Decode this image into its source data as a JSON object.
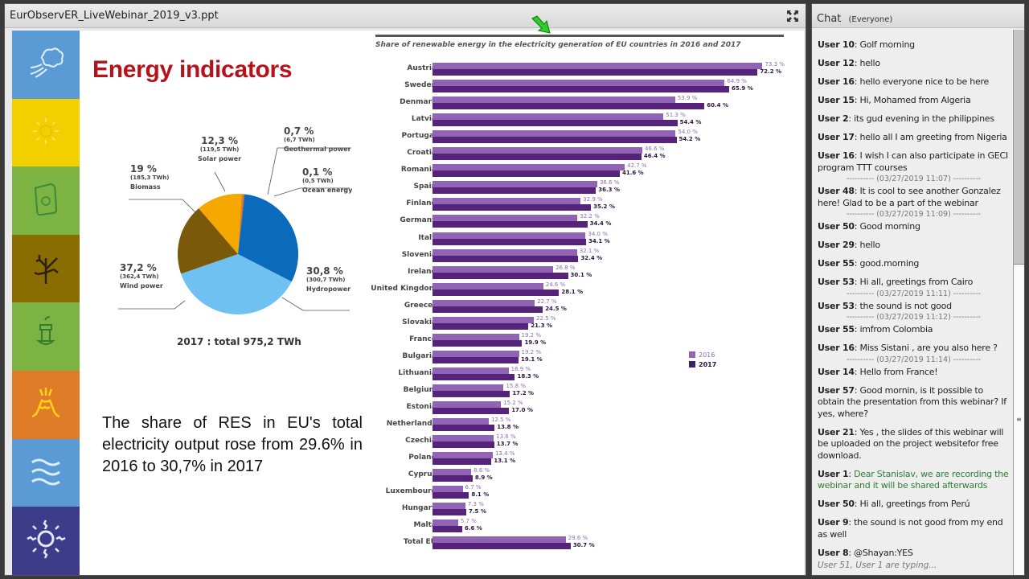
{
  "share_pod": {
    "title": "EurObservER_LiveWebinar_2019_v3.ppt",
    "fullscreen_icon": "fullscreen-icon",
    "cursor_icon": "green-arrow-pointer-icon"
  },
  "slide": {
    "title": "Energy indicators",
    "left_strip": [
      {
        "icon": "wind-icon",
        "color": "#5b9bd5"
      },
      {
        "icon": "solar-icon",
        "color": "#f2d000"
      },
      {
        "icon": "biogas-icon",
        "color": "#7cb342"
      },
      {
        "icon": "biomass-tree-icon",
        "color": "#8a6d00"
      },
      {
        "icon": "waste-icon",
        "color": "#7cb342"
      },
      {
        "icon": "geothermal-volcano-icon",
        "color": "#e07b27"
      },
      {
        "icon": "ocean-waves-icon",
        "color": "#5b9bd5"
      },
      {
        "icon": "heat-sun-icon",
        "color": "#3c3c8a"
      }
    ],
    "pie": {
      "total_label": "2017 : total 975,2 TWh",
      "slices": [
        {
          "name": "Solar power",
          "pct": "12,3 %",
          "twh": "(119,5 TWh)",
          "color": "#f5a800"
        },
        {
          "name": "Geothermal power",
          "pct": "0,7 %",
          "twh": "(6,7 TWh)",
          "color": "#e8791e"
        },
        {
          "name": "Ocean energy",
          "pct": "0,1 %",
          "twh": "(0,5 TWh)",
          "color": "#004a8f"
        },
        {
          "name": "Hydropower",
          "pct": "30,8 %",
          "twh": "(300,7 TWh)",
          "color": "#0a6bbd"
        },
        {
          "name": "Wind power",
          "pct": "37,2 %",
          "twh": "(362,4 TWh)",
          "color": "#6ec1f0"
        },
        {
          "name": "Biomass",
          "pct": "19 %",
          "twh": "(185,3 TWh)",
          "color": "#7a5a0a"
        }
      ]
    },
    "summary": "The share of RES in EU's total electricity output rose from 29.6% in 2016 to 30,7% in 2017",
    "bar_chart": {
      "title": "Share of renewable energy in the electricity generation of EU countries in 2016 and 2017",
      "legend": [
        {
          "label": "2016",
          "color": "#9063b4"
        },
        {
          "label": "2017",
          "color": "#55237a"
        }
      ]
    }
  },
  "chart_data": [
    {
      "type": "pie",
      "title": "2017 : total 975,2 TWh",
      "labels": [
        "Wind power",
        "Hydropower",
        "Biomass",
        "Solar power",
        "Geothermal power",
        "Ocean energy"
      ],
      "values": [
        37.2,
        30.8,
        19.0,
        12.3,
        0.7,
        0.1
      ],
      "twh": [
        362.4,
        300.7,
        185.3,
        119.5,
        6.7,
        0.5
      ],
      "unit": "%"
    },
    {
      "type": "bar",
      "orientation": "horizontal",
      "title": "Share of renewable energy in the electricity generation of EU countries in 2016 and 2017",
      "categories": [
        "Austria",
        "Sweden",
        "Denmark",
        "Latvia",
        "Portugal",
        "Croatia",
        "Romania",
        "Spain",
        "Finland",
        "Germany",
        "Italy",
        "Slovenia",
        "Ireland",
        "United Kingdom",
        "Greece*",
        "Slovakia",
        "France",
        "Bulgaria",
        "Lithuania",
        "Belgium",
        "Estonia",
        "Netherlands",
        "Czechia",
        "Poland",
        "Cyprus",
        "Luxembourg",
        "Hungary",
        "Malta",
        "Total EU"
      ],
      "series": [
        {
          "name": "2016",
          "values": [
            73.3,
            64.9,
            53.9,
            51.3,
            54.0,
            46.6,
            42.7,
            36.6,
            32.9,
            32.2,
            34.0,
            32.1,
            26.8,
            24.6,
            22.7,
            22.5,
            19.2,
            19.2,
            16.9,
            15.8,
            15.2,
            12.5,
            13.6,
            13.4,
            8.6,
            6.7,
            7.3,
            5.7,
            29.6
          ]
        },
        {
          "name": "2017",
          "values": [
            72.2,
            65.9,
            60.4,
            54.4,
            54.2,
            46.4,
            41.6,
            36.3,
            35.2,
            34.4,
            34.1,
            32.4,
            30.1,
            28.1,
            24.5,
            21.3,
            19.9,
            19.1,
            18.3,
            17.2,
            17.0,
            13.8,
            13.7,
            13.1,
            8.9,
            8.1,
            7.5,
            6.6,
            30.7
          ]
        }
      ],
      "xlabel": "",
      "ylabel": "",
      "unit": "%",
      "legend_position": "right"
    }
  ],
  "chat": {
    "title": "Chat",
    "scope": "(Everyone)",
    "items": [
      {
        "kind": "msg",
        "user": "User 10",
        "text": "Golf morning"
      },
      {
        "kind": "msg",
        "user": "User 12",
        "text": "hello"
      },
      {
        "kind": "msg",
        "user": "User 16",
        "text": "hello everyone nice to be here"
      },
      {
        "kind": "msg",
        "user": "User 15",
        "text": "Hi, Mohamed from Algeria"
      },
      {
        "kind": "msg",
        "user": "User 2",
        "text": "its gud evening in the philippines"
      },
      {
        "kind": "msg",
        "user": "User 17",
        "text": "hello all I am greeting from Nigeria"
      },
      {
        "kind": "msg",
        "user": "User 16",
        "text": "I wish I can also participate in GECI program TTT courses",
        "tight": true
      },
      {
        "kind": "sep",
        "text": "---------- (03/27/2019 11:07) ----------"
      },
      {
        "kind": "msg",
        "user": "User 48",
        "text": "It is cool to see another Gonzalez here! Glad to be a part of the webinar",
        "tight": true
      },
      {
        "kind": "sep",
        "text": "---------- (03/27/2019 11:09) ----------"
      },
      {
        "kind": "msg",
        "user": "User 50",
        "text": "Good morning"
      },
      {
        "kind": "msg",
        "user": "User 29",
        "text": "hello"
      },
      {
        "kind": "msg",
        "user": "User 55",
        "text": "good.morning"
      },
      {
        "kind": "msg",
        "user": "User 53",
        "text": "Hi all, greetings from Cairo",
        "tight": true
      },
      {
        "kind": "sep",
        "text": "---------- (03/27/2019 11:11) ----------"
      },
      {
        "kind": "msg",
        "user": "User 53",
        "text": "the sound is not good",
        "tight": true
      },
      {
        "kind": "sep",
        "text": "---------- (03/27/2019 11:12) ----------"
      },
      {
        "kind": "msg",
        "user": "User 55",
        "text": "imfrom Colombia"
      },
      {
        "kind": "msg",
        "user": "User 16",
        "text": "Miss Sistani , are you also here ?",
        "tight": true
      },
      {
        "kind": "sep",
        "text": "---------- (03/27/2019 11:14) ----------"
      },
      {
        "kind": "msg",
        "user": "User 14",
        "text": "Hello from France!"
      },
      {
        "kind": "msg",
        "user": "User 57",
        "text": "Good mornin, is it possible to obtain the presentation  from this webinar? If yes, where?"
      },
      {
        "kind": "msg",
        "user": "User 21",
        "text": "Yes , the slides of this webinar will be uploaded on the project websitefor free download."
      },
      {
        "kind": "msg",
        "user": "User 1",
        "text": "Dear Stanislav, we are recording the webinar and it will be shared afterwards",
        "host": true
      },
      {
        "kind": "msg",
        "user": "User 50",
        "text": "Hi all, greetings from Perú"
      },
      {
        "kind": "msg",
        "user": "User 9",
        "text": "the sound is not good  from my  end as well"
      },
      {
        "kind": "msg",
        "user": "User 8",
        "text": "@Shayan:YES"
      }
    ],
    "typing_indicator": "User 51, User 1 are typing..."
  }
}
